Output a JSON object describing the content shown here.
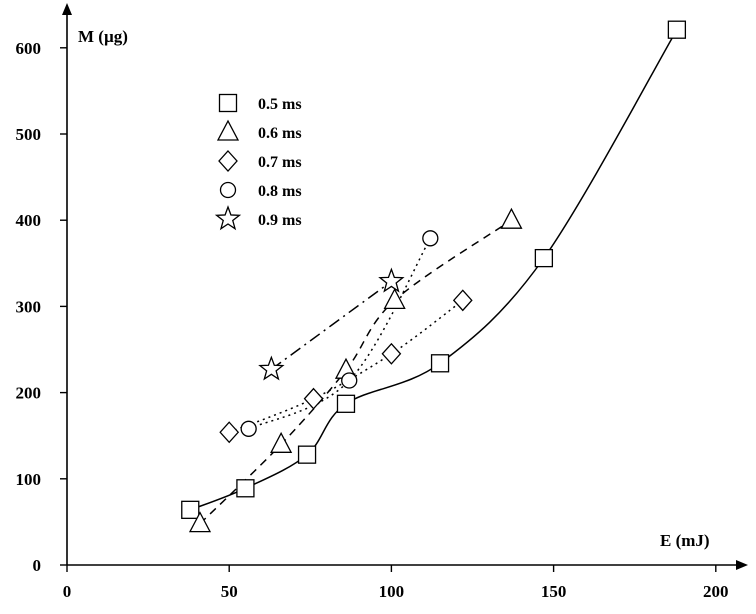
{
  "chart_data": {
    "type": "scatter",
    "xlabel": "E (mJ)",
    "ylabel": "M (µg)",
    "xlim": [
      0,
      200
    ],
    "ylim": [
      0,
      620
    ],
    "xticks": [
      0,
      50,
      100,
      150,
      200
    ],
    "yticks": [
      0,
      100,
      200,
      300,
      400,
      500,
      600
    ],
    "grid": false,
    "legend": "top-left",
    "series": [
      {
        "name": "0.5 ms",
        "marker": "square",
        "line": "solid-smooth",
        "points": [
          [
            38,
            64
          ],
          [
            55,
            89
          ],
          [
            74,
            128
          ],
          [
            86,
            187
          ],
          [
            115,
            234
          ],
          [
            147,
            356
          ],
          [
            188,
            621
          ]
        ]
      },
      {
        "name": "0.6 ms",
        "marker": "triangle",
        "line": "dashed",
        "points": [
          [
            41,
            48
          ],
          [
            66,
            140
          ],
          [
            86,
            226
          ],
          [
            101,
            307
          ],
          [
            137,
            400
          ]
        ]
      },
      {
        "name": "0.7 ms",
        "marker": "diamond",
        "line": "dotted",
        "points": [
          [
            50,
            154
          ],
          [
            76,
            193
          ],
          [
            100,
            245
          ],
          [
            122,
            307
          ]
        ]
      },
      {
        "name": "0.8 ms",
        "marker": "circle",
        "line": "dotted",
        "points": [
          [
            56,
            158
          ],
          [
            87,
            214
          ],
          [
            112,
            379
          ]
        ]
      },
      {
        "name": "0.9 ms",
        "marker": "star",
        "line": "dash-dot",
        "points": [
          [
            63,
            227
          ],
          [
            100,
            329
          ]
        ]
      }
    ]
  }
}
